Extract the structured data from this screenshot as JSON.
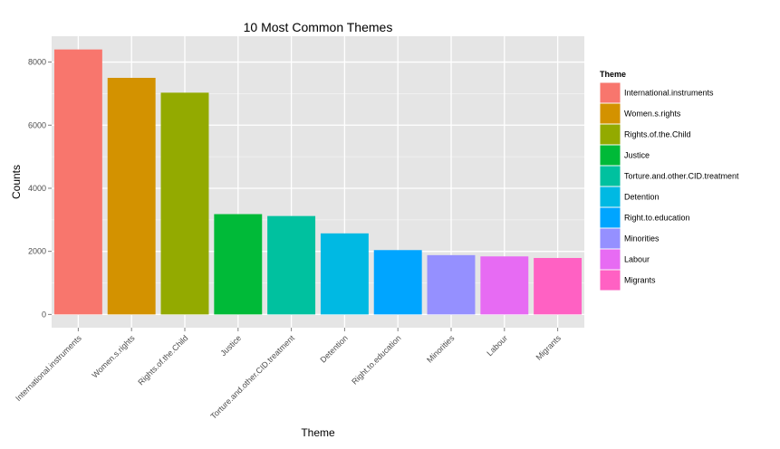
{
  "chart_data": {
    "type": "bar",
    "title": "10 Most Common Themes",
    "xlabel": "Theme",
    "ylabel": "Counts",
    "categories": [
      "International.instruments",
      "Women.s.rights",
      "Rights.of.the.Child",
      "Justice",
      "Torture.and.other.CID.treatment",
      "Detention",
      "Right.to.education",
      "Minorities",
      "Labour",
      "Migrants"
    ],
    "values": [
      8400,
      7500,
      7030,
      3180,
      3120,
      2570,
      2040,
      1880,
      1840,
      1790
    ],
    "colors": [
      "#F8766D",
      "#D39200",
      "#93AA00",
      "#00BA38",
      "#00C19F",
      "#00B9E3",
      "#00A5FF",
      "#9590FF",
      "#E76BF3",
      "#FF61C3"
    ],
    "yticks": [
      0,
      2000,
      4000,
      6000,
      8000
    ],
    "ylim": [
      -420,
      8820
    ],
    "grid": true,
    "legend": {
      "title": "Theme",
      "position": "right"
    }
  }
}
